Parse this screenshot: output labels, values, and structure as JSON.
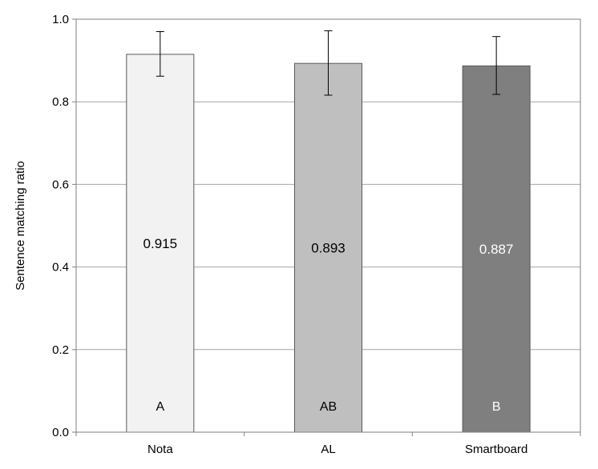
{
  "chart_data": {
    "type": "bar",
    "title": "",
    "xlabel": "",
    "ylabel": "Sentence matching ratio",
    "ylim": [
      0,
      1.0
    ],
    "yticks": [
      "0.0",
      "0.2",
      "0.4",
      "0.6",
      "0.8",
      "1.0"
    ],
    "ytick_values": [
      0,
      0.2,
      0.4,
      0.6,
      0.8,
      1.0
    ],
    "grid": true,
    "legend": "none",
    "categories": [
      "Nota",
      "AL",
      "Smartboard"
    ],
    "values": [
      0.915,
      0.893,
      0.887
    ],
    "value_labels": [
      "0.915",
      "0.893",
      "0.887"
    ],
    "error_low": [
      0.862,
      0.816,
      0.818
    ],
    "error_high": [
      0.97,
      0.972,
      0.958
    ],
    "group_letters": [
      "A",
      "AB",
      "B"
    ],
    "colors": [
      "#f2f2f2",
      "#bfbfbf",
      "#7f7f7f"
    ],
    "label_colors": [
      "#000000",
      "#000000",
      "#ffffff"
    ]
  }
}
